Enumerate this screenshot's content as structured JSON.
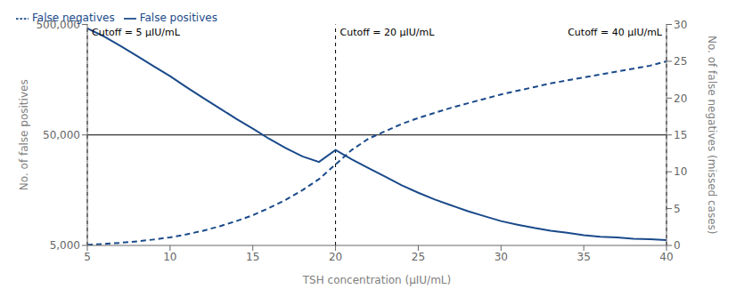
{
  "chart_data": {
    "type": "line",
    "xlabel": "TSH concentration (μIU/mL)",
    "ylabel": "No. of false positives",
    "y2label": "No. of false negatives (missed cases)",
    "x": [
      5,
      6,
      7,
      8,
      9,
      10,
      11,
      12,
      13,
      14,
      15,
      16,
      17,
      18,
      19,
      20,
      21,
      22,
      23,
      24,
      25,
      26,
      27,
      28,
      29,
      30,
      31,
      32,
      33,
      34,
      35,
      36,
      37,
      38,
      39,
      40
    ],
    "series": [
      {
        "name": "False positives",
        "color": "#1a4a8a",
        "line_style": "solid",
        "values": [
          460000,
          390000,
          320000,
          260000,
          210000,
          170000,
          135000,
          108000,
          87000,
          70000,
          57000,
          46000,
          38000,
          32000,
          28500,
          36500,
          30000,
          25000,
          21000,
          17500,
          15000,
          13000,
          11500,
          10200,
          9200,
          8300,
          7700,
          7200,
          6800,
          6500,
          6200,
          6000,
          5900,
          5750,
          5700,
          5600
        ]
      },
      {
        "name": "False negatives",
        "color": "#1a4a8a",
        "line_style": "dashed",
        "axis": "y2",
        "values": [
          0.1,
          0.2,
          0.35,
          0.55,
          0.8,
          1.1,
          1.5,
          2.0,
          2.6,
          3.3,
          4.1,
          5.1,
          6.2,
          7.5,
          9.0,
          11.0,
          13.0,
          14.5,
          15.5,
          16.5,
          17.3,
          18.0,
          18.7,
          19.3,
          19.9,
          20.5,
          21.0,
          21.5,
          22.0,
          22.4,
          22.8,
          23.2,
          23.6,
          24.0,
          24.4,
          25.0
        ]
      }
    ],
    "xlim": [
      5,
      40
    ],
    "xticks": [
      5,
      10,
      15,
      20,
      25,
      30,
      35,
      40
    ],
    "log": "y",
    "ylim": [
      5000,
      500000
    ],
    "yticks": [
      {
        "value": 5000,
        "label": "5,000"
      },
      {
        "value": 50000,
        "label": "50,000"
      },
      {
        "value": 500000,
        "label": "500,000"
      }
    ],
    "y2lim": [
      0,
      30
    ],
    "y2ticks": [
      0,
      5,
      10,
      15,
      20,
      25,
      30
    ],
    "hline": 50000,
    "vlines": [
      {
        "x": 5,
        "label": "Cutoff = 5 μIU/mL"
      },
      {
        "x": 20,
        "label": "Cutoff = 20 μIU/mL"
      },
      {
        "x": 40,
        "label": "Cutoff = 40 μIU/mL"
      }
    ],
    "legend": "upper left",
    "grid": false
  }
}
